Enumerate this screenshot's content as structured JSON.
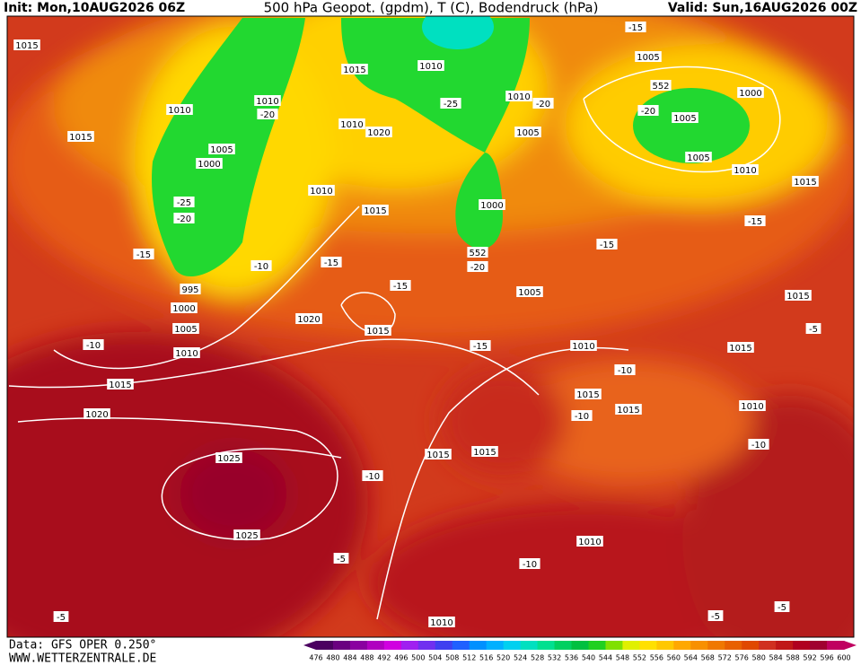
{
  "header": {
    "init": "Init: Mon,10AUG2026 06Z",
    "title": "500 hPa Geopot. (gpdm), T (C), Bodendruck (hPa)",
    "valid": "Valid: Sun,16AUG2026 00Z"
  },
  "footer": {
    "source": "Data: GFS OPER 0.250°",
    "website": "WWW.WETTERZENTRALE.DE"
  },
  "colorbar": {
    "ticks": [
      476,
      480,
      484,
      488,
      492,
      496,
      500,
      504,
      508,
      512,
      516,
      520,
      524,
      528,
      532,
      536,
      540,
      544,
      548,
      552,
      556,
      560,
      564,
      568,
      572,
      576,
      580,
      584,
      588,
      592,
      596,
      600
    ],
    "colors": [
      "#4b0060",
      "#6a0080",
      "#8a00a0",
      "#b000c0",
      "#d000e0",
      "#a020f0",
      "#7030f0",
      "#4040f0",
      "#2060ff",
      "#0090ff",
      "#00b0ff",
      "#00d0f0",
      "#00e0c0",
      "#00e090",
      "#00d060",
      "#00c040",
      "#20d020",
      "#80e000",
      "#e0f000",
      "#ffe000",
      "#ffc800",
      "#ffa800",
      "#f89000",
      "#f07800",
      "#e86000",
      "#e04800",
      "#d03020",
      "#c01818",
      "#b00020",
      "#a00030",
      "#c00060"
    ]
  },
  "pressure_labels": [
    "1015",
    "1010",
    "1015",
    "1010",
    "1005",
    "1000",
    "1010",
    "1015",
    "1010",
    "1020",
    "1015",
    "1010",
    "1010",
    "1005",
    "1000",
    "1005",
    "1000",
    "1005",
    "1005",
    "1010",
    "1015",
    "995",
    "1000",
    "1005",
    "1010",
    "1020",
    "1015",
    "1015",
    "1020",
    "1025",
    "1025",
    "1005",
    "1010",
    "1015",
    "1015",
    "1015",
    "1015",
    "1010",
    "1015",
    "1015",
    "1010",
    "1010"
  ],
  "temperature_labels": [
    "-15",
    "-20",
    "-25",
    "-20",
    "-20",
    "-25",
    "-20",
    "-15",
    "-10",
    "-15",
    "-15",
    "-20",
    "-15",
    "-15",
    "-10",
    "-15",
    "-10",
    "-10",
    "-10",
    "-10",
    "-5",
    "-10",
    "-5",
    "-5",
    "-5",
    "-5"
  ],
  "height_labels": [
    "552",
    "552"
  ]
}
